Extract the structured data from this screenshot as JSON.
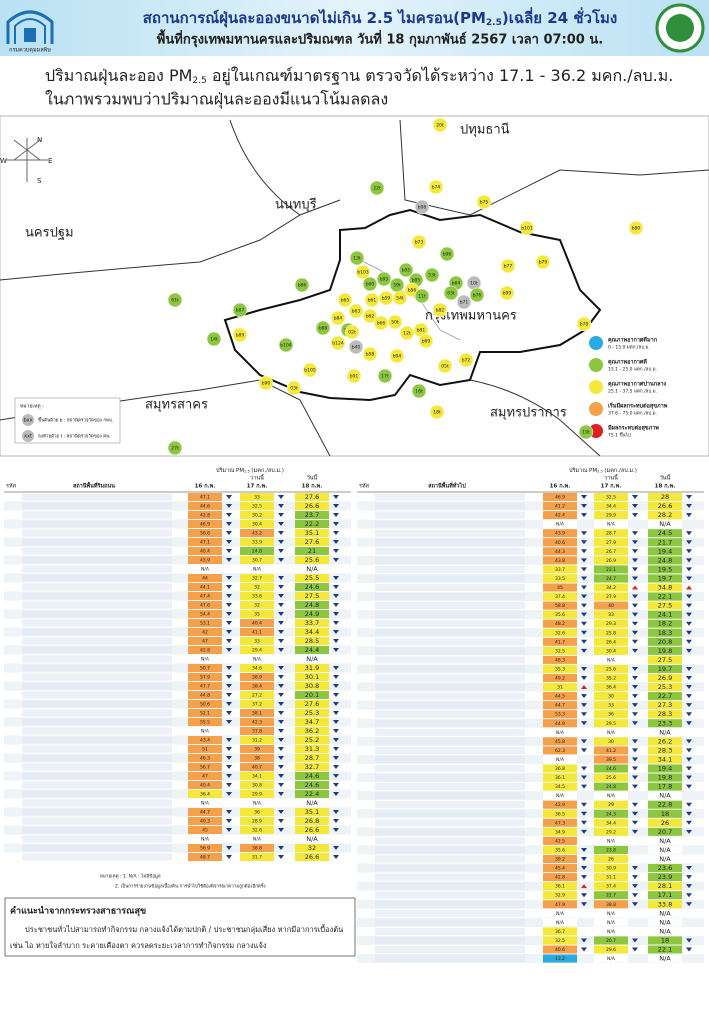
{
  "header": {
    "title_pre": "สถานการณ์ฝุ่นละอองขนาดไม่เกิน 2.5 ไมครอน(PM",
    "title_sub": "2.5",
    "title_post": ")เฉลี่ย 24 ชั่วโมง",
    "subtitle": "พื้นที่กรุงเทพมหานครและปริมณฑล วันที่ 18 กุมภาพันธ์ 2567 เวลา 07:00 น.",
    "logo_text": "กรมควบคุมมลพิษ"
  },
  "summary": {
    "line1_pre": "ปริมาณฝุ่นละออง PM",
    "line1_sub": "2.5",
    "line1_post": " อยู่ในเกณฑ์มาตรฐาน ตรวจวัดได้ระหว่าง 17.1 - 36.2 มคก./ลบ.ม.",
    "line2": "ในภาพรวมพบว่าปริมาณฝุ่นละอองมีแนวโน้มลดลง"
  },
  "map": {
    "compass": [
      "N",
      "E",
      "S",
      "W"
    ],
    "provinces": [
      "ปทุมธานี",
      "นนทบุรี",
      "นครปฐม",
      "กรุงเทพมหานคร",
      "สมุทรสาคร",
      "สมุทรปราการ"
    ],
    "note_title": "หมายเหตุ :",
    "notes": [
      {
        "code": "bxx",
        "text": "ขึ้นต้นด้วย b : สถานีตรวจวัดของ กทม."
      },
      {
        "code": "xxt",
        "text": "ลงท้ายด้วย t : สถานีตรวจวัดของ คพ."
      }
    ],
    "legend": [
      {
        "label": "คุณภาพอากาศดีมาก",
        "range": "0 - 15.0 มคก./ลบ.ม.",
        "color": "#29abe2",
        "max": 15
      },
      {
        "label": "คุณภาพอากาศดี",
        "range": "15.1 - 25.0 มคก./ลบ.ม.",
        "color": "#8dc63f",
        "max": 25
      },
      {
        "label": "คุณภาพอากาศปานกลาง",
        "range": "25.1 - 37.5 มคก./ลบ.ม.",
        "color": "#f4e93a",
        "max": 37.5
      },
      {
        "label": "เริ่มมีผลกระทบต่อสุขภาพ",
        "range": "37.6 - 75.0 มคก./ลบ.ม.",
        "color": "#f5a04a",
        "max": 75
      },
      {
        "label": "มีผลกระทบต่อสุขภาพ",
        "range": "75.1 ขึ้นไป",
        "color": "#e02020",
        "max": null
      }
    ],
    "stations": [
      {
        "label": "20t",
        "color": "#f4e93a"
      },
      {
        "label": "b74",
        "color": "#f4e93a"
      },
      {
        "label": "b75",
        "color": "#f4e93a"
      },
      {
        "label": "22t",
        "color": "#8dc63f"
      },
      {
        "label": "b98",
        "color": "#bbbbbb"
      },
      {
        "label": "b101",
        "color": "#f4e93a"
      },
      {
        "label": "b80",
        "color": "#f4e93a"
      },
      {
        "label": "b73",
        "color": "#f4e93a"
      },
      {
        "label": "b79",
        "color": "#f4e93a"
      },
      {
        "label": "b77",
        "color": "#f4e93a"
      },
      {
        "label": "13t",
        "color": "#8dc63f"
      },
      {
        "label": "b96",
        "color": "#8dc63f"
      },
      {
        "label": "b95",
        "color": "#8dc63f"
      },
      {
        "label": "53t",
        "color": "#8dc63f"
      },
      {
        "label": "b86",
        "color": "#8dc63f"
      },
      {
        "label": "b60",
        "color": "#8dc63f"
      },
      {
        "label": "b85",
        "color": "#8dc63f"
      },
      {
        "label": "59t",
        "color": "#8dc63f"
      },
      {
        "label": "b64",
        "color": "#8dc63f"
      },
      {
        "label": "10t",
        "color": "#bbbbbb"
      },
      {
        "label": "b103",
        "color": "#f4e93a"
      },
      {
        "label": "b56",
        "color": "#f4e93a"
      },
      {
        "label": "b76",
        "color": "#8dc63f"
      },
      {
        "label": "b99",
        "color": "#f4e93a"
      },
      {
        "label": "b65",
        "color": "#f4e93a"
      },
      {
        "label": "63t",
        "color": "#8dc63f"
      },
      {
        "label": "b71",
        "color": "#bbbbbb"
      },
      {
        "label": "b93",
        "color": "#8dc63f"
      },
      {
        "label": "b59",
        "color": "#f4e93a"
      },
      {
        "label": "54t",
        "color": "#f4e93a"
      },
      {
        "label": "11t",
        "color": "#8dc63f"
      },
      {
        "label": "61t",
        "color": "#8dc63f"
      },
      {
        "label": "b87",
        "color": "#8dc63f"
      },
      {
        "label": "b61",
        "color": "#f4e93a"
      },
      {
        "label": "b82",
        "color": "#f4e93a"
      },
      {
        "label": "b63",
        "color": "#f4e93a"
      },
      {
        "label": "b84",
        "color": "#f4e93a"
      },
      {
        "label": "b62",
        "color": "#f4e93a"
      },
      {
        "label": "b66",
        "color": "#f4e93a"
      },
      {
        "label": "50t",
        "color": "#f4e93a"
      },
      {
        "label": "b78",
        "color": "#f4e93a"
      },
      {
        "label": "b88",
        "color": "#8dc63f"
      },
      {
        "label": "52t",
        "color": "#8dc63f"
      },
      {
        "label": "b81",
        "color": "#f4e93a"
      },
      {
        "label": "b89",
        "color": "#f4e93a"
      },
      {
        "label": "14t",
        "color": "#8dc63f"
      },
      {
        "label": "b104",
        "color": "#8dc63f"
      },
      {
        "label": "b124",
        "color": "#f4e93a"
      },
      {
        "label": "b40",
        "color": "#bbbbbb"
      },
      {
        "label": "02t",
        "color": "#f4e93a"
      },
      {
        "label": "12t",
        "color": "#f4e93a"
      },
      {
        "label": "b69",
        "color": "#f4e93a"
      },
      {
        "label": "b58",
        "color": "#f4e93a"
      },
      {
        "label": "b94",
        "color": "#f4e93a"
      },
      {
        "label": "b72",
        "color": "#f4e93a"
      },
      {
        "label": "05t",
        "color": "#f4e93a"
      },
      {
        "label": "b105",
        "color": "#f4e93a"
      },
      {
        "label": "b91",
        "color": "#f4e93a"
      },
      {
        "label": "17t",
        "color": "#8dc63f"
      },
      {
        "label": "b90",
        "color": "#f4e93a"
      },
      {
        "label": "03t",
        "color": "#f4e93a"
      },
      {
        "label": "16t",
        "color": "#8dc63f"
      },
      {
        "label": "18t",
        "color": "#f4e93a"
      },
      {
        "label": "27t",
        "color": "#8dc63f"
      },
      {
        "label": "19t",
        "color": "#8dc63f"
      }
    ]
  },
  "tables": {
    "unit_pre": "ปริมาณ PM",
    "unit_sub": "2.5",
    "unit_post": " (มคก./ลบ.ม.)",
    "code_header": "รหัส",
    "yesterday": "วานนี้",
    "today": "วันนี้",
    "dates": [
      "16 ก.พ.",
      "17 ก.พ.",
      "18 ก.พ."
    ],
    "left": {
      "header": "สถานีพื้นที่ริมถนน",
      "rows": [
        [
          47.1,
          33.0,
          27.6
        ],
        [
          44.6,
          32.5,
          26.6
        ],
        [
          42.8,
          30.2,
          23.7
        ],
        [
          46.9,
          30.4,
          22.2
        ],
        [
          56.6,
          43.2,
          35.1
        ],
        [
          47.1,
          33.9,
          27.6
        ],
        [
          40.4,
          24.8,
          21.0
        ],
        [
          43.9,
          30.7,
          25.6
        ],
        [
          "N/A",
          "N/A",
          "N/A"
        ],
        [
          44.0,
          32.7,
          25.5
        ],
        [
          44.1,
          32.0,
          24.6
        ],
        [
          47.4,
          33.6,
          27.5
        ],
        [
          47.6,
          32.0,
          24.8
        ],
        [
          54.4,
          35.0,
          24.9
        ],
        [
          53.1,
          40.4,
          33.7
        ],
        [
          42.0,
          41.1,
          34.4
        ],
        [
          47.0,
          33.0,
          28.5
        ],
        [
          42.8,
          29.4,
          24.4
        ],
        [
          "N/A",
          "N/A",
          "N/A"
        ],
        [
          50.7,
          34.6,
          31.9
        ],
        [
          57.9,
          38.9,
          30.1
        ],
        [
          47.7,
          38.4,
          30.8
        ],
        [
          44.8,
          27.2,
          20.1
        ],
        [
          50.6,
          37.2,
          27.6
        ],
        [
          52.1,
          38.1,
          25.3
        ],
        [
          55.5,
          42.3,
          34.7
        ],
        [
          "N/A",
          37.8,
          36.2
        ],
        [
          43.4,
          31.2,
          25.2
        ],
        [
          51.0,
          39.0,
          31.3
        ],
        [
          46.3,
          38.0,
          28.7
        ],
        [
          56.7,
          40.7,
          32.7
        ],
        [
          47.0,
          34.1,
          24.6
        ],
        [
          40.4,
          30.8,
          24.6
        ],
        [
          36.4,
          29.9,
          22.4
        ],
        [
          "N/A",
          "N/A",
          "N/A"
        ],
        [
          44.7,
          36.0,
          35.1
        ],
        [
          40.3,
          28.9,
          26.8
        ],
        [
          45.0,
          32.6,
          26.6
        ],
        [
          "N/A",
          "N/A",
          "N/A"
        ],
        [
          56.9,
          38.8,
          32.0
        ],
        [
          48.7,
          31.7,
          26.6
        ]
      ]
    },
    "right": {
      "header": "สถานีพื้นที่ทั่วไป",
      "rows": [
        [
          46.9,
          32.5,
          28.0
        ],
        [
          41.2,
          34.4,
          26.6
        ],
        [
          42.4,
          29.9,
          28.2
        ],
        [
          "N/A",
          "N/A",
          "N/A"
        ],
        [
          43.9,
          28.7,
          24.5
        ],
        [
          40.6,
          27.9,
          21.7
        ],
        [
          44.3,
          26.7,
          19.4
        ],
        [
          43.8,
          26.9,
          24.8
        ],
        [
          33.7,
          23.1,
          19.5
        ],
        [
          33.5,
          24.7,
          19.7
        ],
        [
          45.0,
          34.2,
          34.8
        ],
        [
          37.4,
          27.9,
          22.1
        ],
        [
          58.8,
          40.0,
          27.5
        ],
        [
          35.6,
          33.0,
          24.1
        ],
        [
          48.2,
          29.3,
          18.2
        ],
        [
          32.6,
          25.8,
          18.3
        ],
        [
          41.7,
          26.4,
          20.8
        ],
        [
          32.5,
          30.4,
          19.8
        ],
        [
          48.3,
          "N/A",
          27.5
        ],
        [
          35.3,
          25.6,
          19.7
        ],
        [
          49.2,
          35.2,
          26.9
        ],
        [
          31.0,
          36.4,
          25.3
        ],
        [
          44.5,
          30.0,
          22.7
        ],
        [
          44.7,
          33.0,
          27.3
        ],
        [
          53.3,
          36.0,
          28.3
        ],
        [
          44.9,
          29.5,
          23.3
        ],
        [
          "N/A",
          "N/A",
          "N/A"
        ],
        [
          45.8,
          30.0,
          26.2
        ],
        [
          62.3,
          41.2,
          28.3
        ],
        [
          "N/A",
          39.5,
          34.1
        ],
        [
          36.8,
          24.6,
          19.4
        ],
        [
          36.1,
          25.6,
          19.8
        ],
        [
          34.5,
          24.8,
          17.8
        ],
        [
          "N/A",
          "N/A",
          "N/A"
        ],
        [
          42.9,
          29.0,
          22.8
        ],
        [
          36.5,
          24.3,
          18.0
        ],
        [
          47.3,
          34.4,
          26.0
        ],
        [
          34.9,
          29.2,
          20.7
        ],
        [
          42.5,
          "N/A",
          "N/A"
        ],
        [
          35.6,
          23.8,
          "N/A"
        ],
        [
          39.2,
          26.0,
          "N/A"
        ],
        [
          45.4,
          30.9,
          23.6
        ],
        [
          42.8,
          31.1,
          23.9
        ],
        [
          36.1,
          37.4,
          28.1
        ],
        [
          32.9,
          22.7,
          17.1
        ],
        [
          47.9,
          38.8,
          33.8
        ],
        [
          "N/A",
          "N/A",
          "N/A"
        ],
        [
          "N/A",
          "N/A",
          "N/A"
        ],
        [
          36.7,
          "N/A",
          "N/A"
        ],
        [
          32.5,
          20.7,
          18.0
        ],
        [
          40.6,
          29.6,
          22.1
        ],
        [
          13.2,
          "N/A",
          "N/A"
        ]
      ]
    },
    "footnotes": [
      "หมายเหตุ : 1. N/A : ไม่มีข้อมูล",
      "2. เป็นการรายงานข้อมูลเบื้องต้น การนำไปใช้ต้องพิจารณาความถูกต้องอีกครั้ง"
    ]
  },
  "advice": {
    "title": "คำแนะนำจากกระทรวงสาธารณสุข",
    "line1": "ประชาชนทั่วไปสามารถทำกิจกรรม กลางแจ้งได้ตามปกติ / ประชาชนกลุ่มเสี่ยง หากมีอาการเบื้องต้น",
    "line2": "เช่น ไอ หายใจลำบาก ระคายเคืองตา ควรลดระยะเวลาการทำกิจกรรม กลางแจ้ง"
  }
}
